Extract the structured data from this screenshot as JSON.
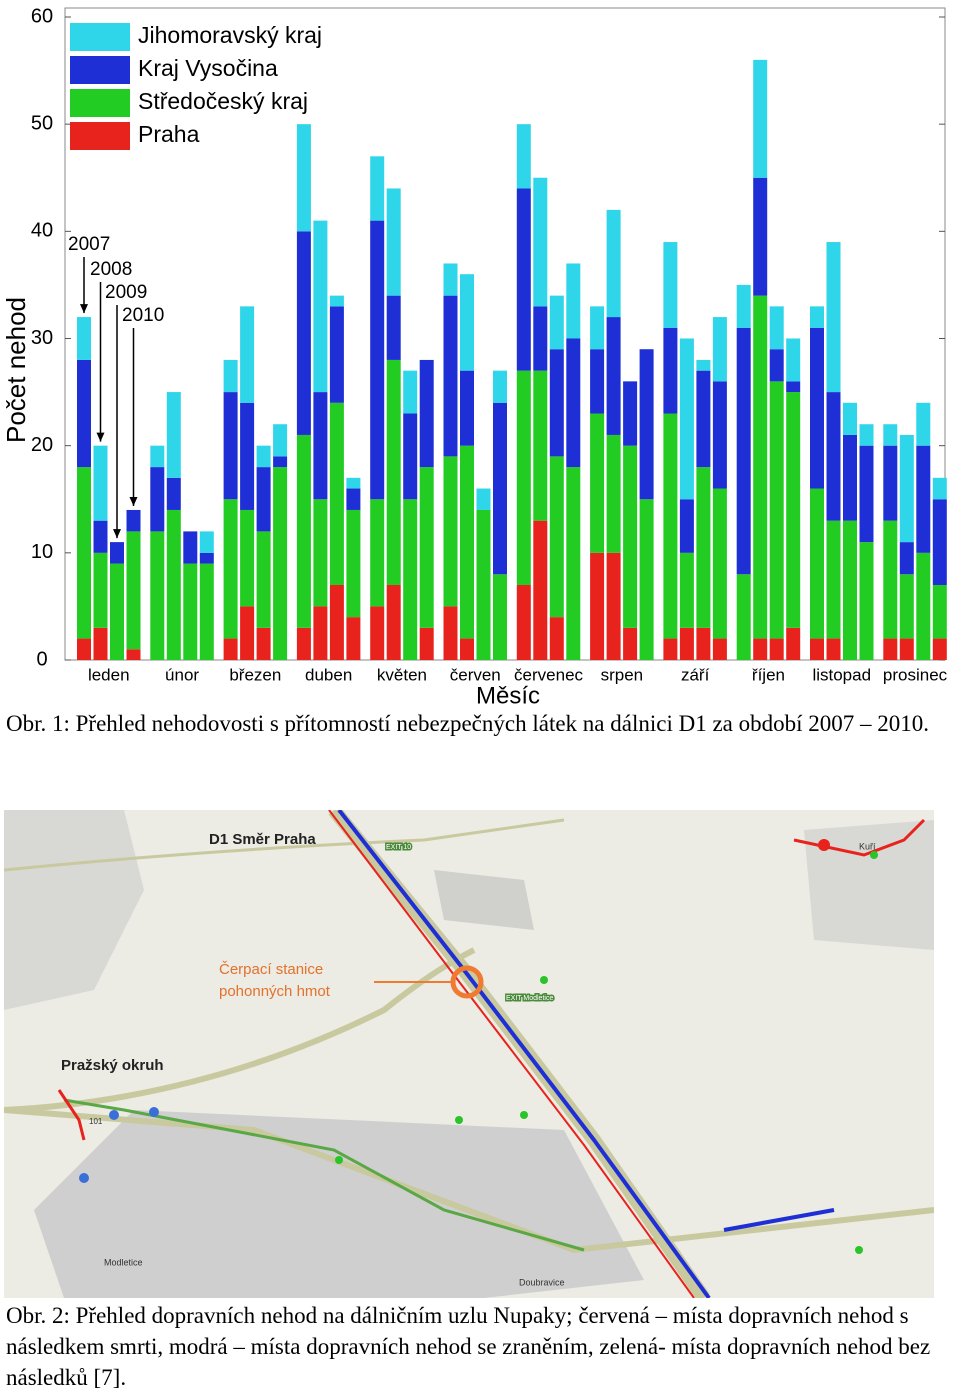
{
  "chart_data": {
    "type": "stacked-bar",
    "ylabel": "Počet nehod",
    "xlabel": "Měsíc",
    "categories": [
      "leden",
      "únor",
      "březen",
      "duben",
      "květen",
      "červen",
      "červenec",
      "srpen",
      "září",
      "říjen",
      "listopad",
      "prosinec"
    ],
    "ylim": [
      0,
      60
    ],
    "yticks": [
      0,
      10,
      20,
      30,
      40,
      50,
      60
    ],
    "annotations": [
      "2007",
      "2008",
      "2009",
      "2010"
    ],
    "series": [
      {
        "name": "Praha",
        "color": "#e8221c",
        "values": [
          [
            2,
            3,
            0,
            1
          ],
          [
            0,
            0,
            0,
            0
          ],
          [
            2,
            5,
            3,
            0
          ],
          [
            3,
            5,
            7,
            4
          ],
          [
            5,
            7,
            0,
            3
          ],
          [
            5,
            2,
            0,
            0
          ],
          [
            7,
            13,
            4,
            0
          ],
          [
            10,
            10,
            3,
            0
          ],
          [
            2,
            3,
            3,
            2
          ],
          [
            0,
            2,
            2,
            3
          ],
          [
            2,
            2,
            0,
            0
          ],
          [
            2,
            2,
            0,
            2
          ]
        ]
      },
      {
        "name": "Středočeský kraj",
        "color": "#22cc22",
        "values": [
          [
            16,
            7,
            9,
            11
          ],
          [
            12,
            14,
            9,
            9
          ],
          [
            13,
            9,
            9,
            18
          ],
          [
            18,
            10,
            17,
            10
          ],
          [
            10,
            21,
            15,
            15
          ],
          [
            14,
            18,
            14,
            8
          ],
          [
            20,
            14,
            15,
            18
          ],
          [
            13,
            11,
            17,
            15
          ],
          [
            21,
            7,
            15,
            14
          ],
          [
            8,
            32,
            24,
            22
          ],
          [
            14,
            11,
            13,
            11
          ],
          [
            11,
            6,
            10,
            5
          ]
        ]
      },
      {
        "name": "Kraj Vysočina",
        "color": "#1f2fd6",
        "values": [
          [
            10,
            3,
            2,
            2
          ],
          [
            6,
            3,
            3,
            1
          ],
          [
            10,
            10,
            6,
            1
          ],
          [
            19,
            10,
            9,
            2
          ],
          [
            26,
            6,
            8,
            10
          ],
          [
            15,
            7,
            0,
            16
          ],
          [
            17,
            6,
            10,
            12
          ],
          [
            6,
            11,
            6,
            14
          ],
          [
            8,
            5,
            9,
            10
          ],
          [
            23,
            11,
            3,
            1
          ],
          [
            15,
            12,
            8,
            9
          ],
          [
            7,
            3,
            10,
            8
          ]
        ]
      },
      {
        "name": "Jihomoravský kraj",
        "color": "#2fd5e8",
        "values": [
          [
            4,
            7,
            0,
            0
          ],
          [
            2,
            8,
            0,
            2
          ],
          [
            3,
            9,
            2,
            3
          ],
          [
            10,
            16,
            1,
            1
          ],
          [
            6,
            10,
            4,
            0
          ],
          [
            3,
            9,
            2,
            3
          ],
          [
            6,
            12,
            5,
            7
          ],
          [
            4,
            10,
            0,
            0
          ],
          [
            8,
            15,
            1,
            6
          ],
          [
            4,
            11,
            4,
            4
          ],
          [
            2,
            14,
            3,
            2
          ],
          [
            2,
            10,
            4,
            2
          ]
        ]
      }
    ]
  },
  "caption1": "Obr. 1: Přehled nehodovosti s přítomností nebezpečných látek na dálnici D1 za období 2007 – 2010.",
  "map": {
    "labels": [
      "D1 Směr Praha",
      "Čerpací stanice pohonných hmot",
      "Pražský okruh",
      "Kuří",
      "Modletice",
      "Doubravice",
      "EXIT 10",
      "EXIT Modletice",
      "101"
    ]
  },
  "caption2": "Obr. 2: Přehled dopravních nehod na dálničním uzlu Nupaky; červená – místa dopravních nehod s následkem smrti, modrá – místa dopravních nehod se zraněním, zelená- místa dopravních nehod bez následků [7]."
}
